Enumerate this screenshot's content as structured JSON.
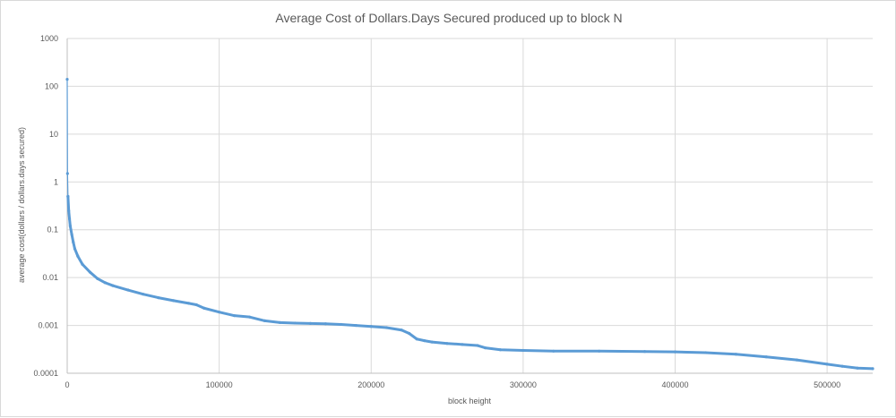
{
  "chart_data": {
    "type": "scatter",
    "title": "Average Cost of Dollars.Days Secured  produced up to block N",
    "xlabel": "block height",
    "ylabel": "average cost(dollars / dollars.days secured)",
    "xlim": [
      0,
      530000
    ],
    "ylim": [
      0.0001,
      1000
    ],
    "yscale": "log",
    "grid": true,
    "x_ticks": [
      0,
      100000,
      200000,
      300000,
      400000,
      500000
    ],
    "y_ticks": [
      1000,
      100,
      10,
      1,
      0.1,
      0.01,
      0.001,
      0.0001
    ],
    "y_tick_labels": [
      "1000",
      "100",
      "10",
      "1",
      "0.1",
      "0.01",
      "0.001",
      "0.0001"
    ],
    "series_color": "#5b9bd5",
    "series": [
      {
        "x": [
          0,
          200,
          500,
          1000,
          1500,
          2000,
          3000,
          4000,
          5000,
          7000,
          10000,
          15000,
          20000,
          25000,
          30000,
          40000,
          50000,
          60000,
          70000,
          80000,
          85000,
          90000,
          100000,
          110000,
          120000,
          130000,
          140000,
          150000,
          160000,
          170000,
          180000,
          190000,
          200000,
          210000,
          220000,
          225000,
          230000,
          235000,
          240000,
          250000,
          260000,
          270000,
          275000,
          285000,
          300000,
          320000,
          350000,
          380000,
          400000,
          420000,
          440000,
          460000,
          480000,
          500000,
          510000,
          520000,
          530000
        ],
        "y": [
          140,
          1.5,
          0.5,
          0.25,
          0.17,
          0.12,
          0.08,
          0.055,
          0.04,
          0.028,
          0.019,
          0.013,
          0.0095,
          0.0078,
          0.0068,
          0.0055,
          0.0045,
          0.0038,
          0.0033,
          0.0029,
          0.0027,
          0.0023,
          0.0019,
          0.0016,
          0.0015,
          0.00125,
          0.00115,
          0.00112,
          0.0011,
          0.00108,
          0.00105,
          0.001,
          0.00095,
          0.0009,
          0.0008,
          0.00068,
          0.00052,
          0.00048,
          0.00045,
          0.00042,
          0.0004,
          0.00038,
          0.00034,
          0.00031,
          0.0003,
          0.00029,
          0.00029,
          0.000285,
          0.00028,
          0.00027,
          0.00025,
          0.00022,
          0.00019,
          0.000155,
          0.00014,
          0.000128,
          0.000125
        ]
      }
    ]
  }
}
